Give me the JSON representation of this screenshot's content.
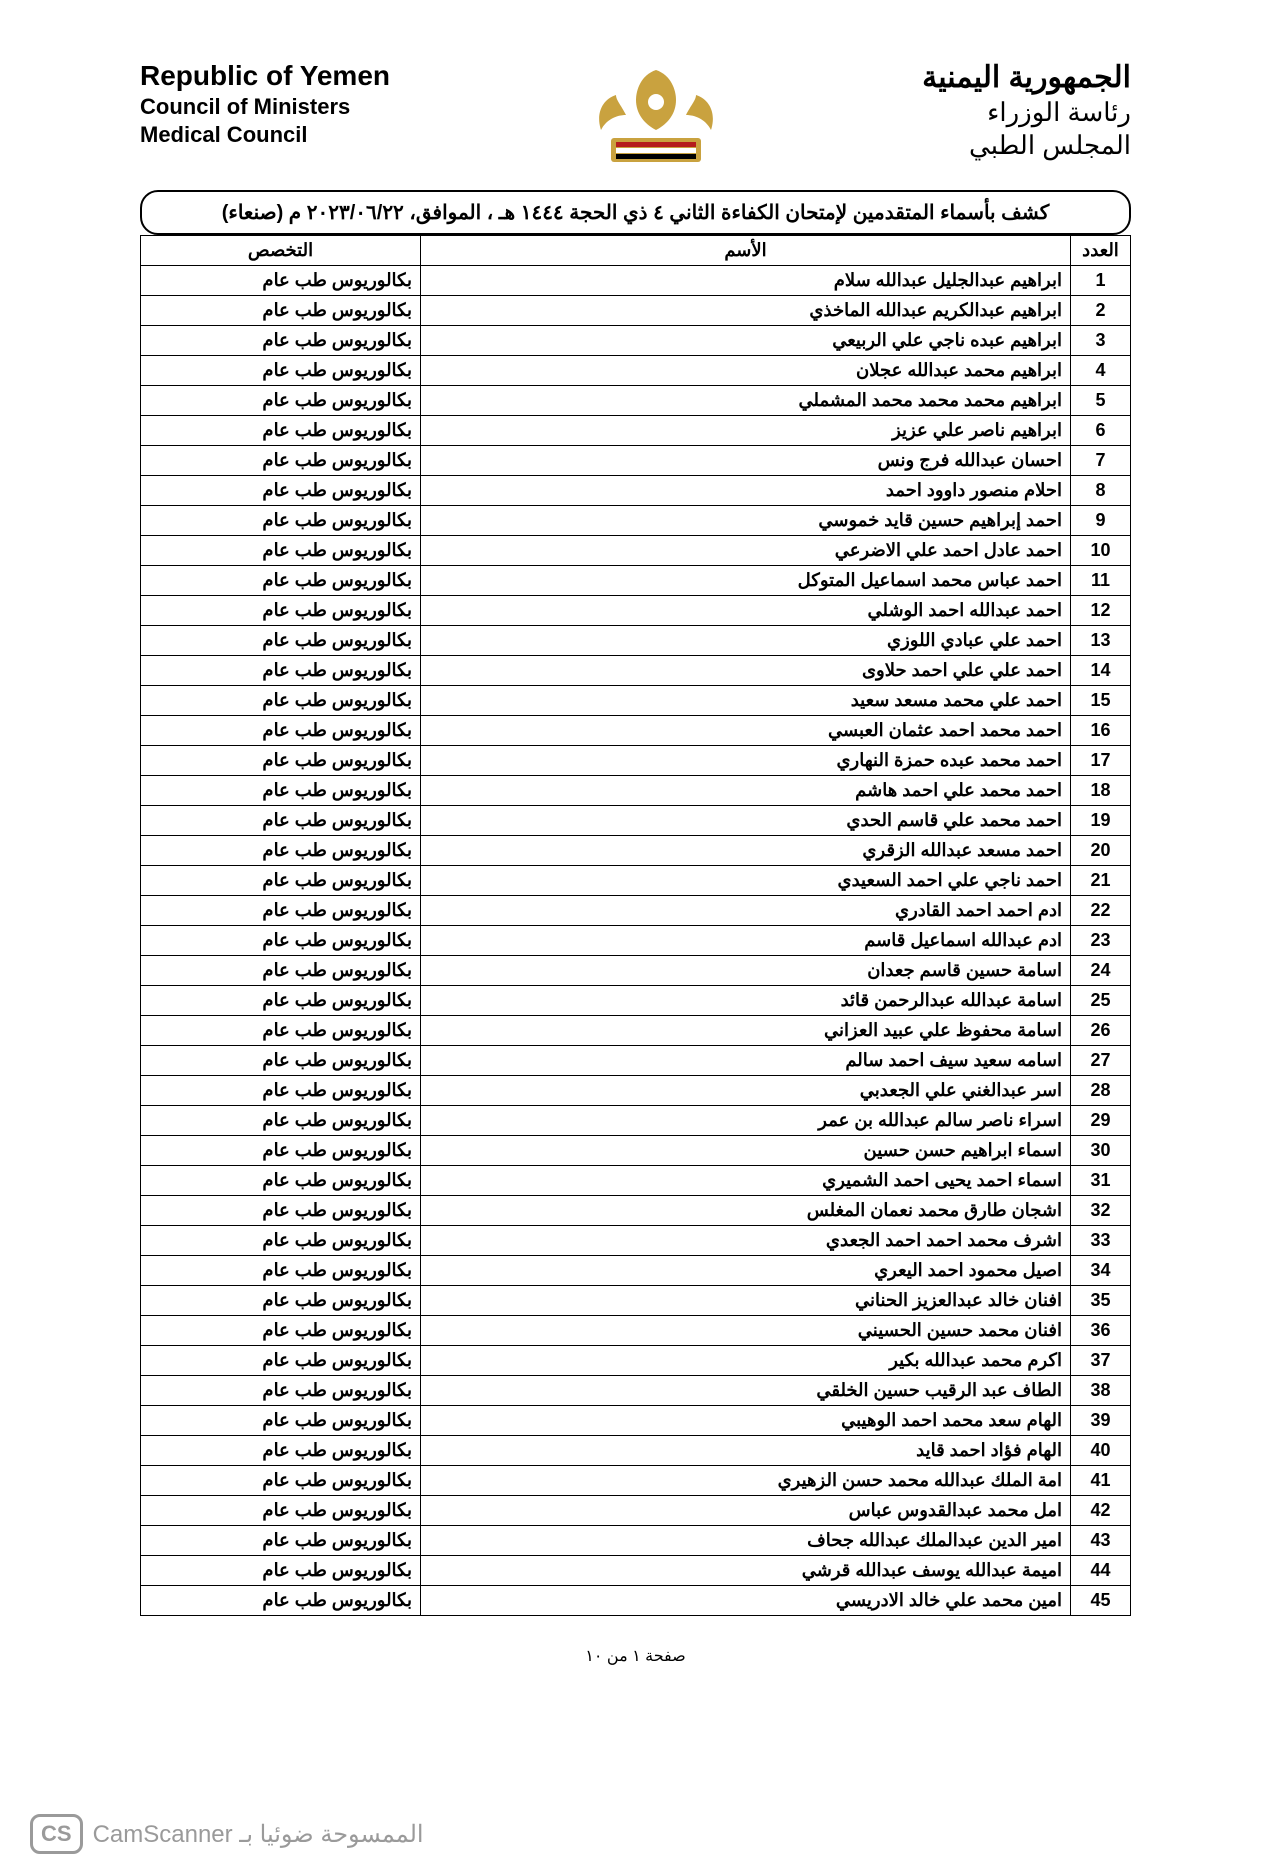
{
  "header": {
    "en": {
      "line1": "Republic of Yemen",
      "line2": "Council of Ministers",
      "line3": "Medical Council"
    },
    "ar": {
      "line1": "الجمهورية اليمنية",
      "line2": "رئاسة الوزراء",
      "line3": "المجلس الطبي"
    },
    "emblem_colors": {
      "gold": "#c9a23f",
      "red": "#b51d1d",
      "white": "#ffffff",
      "black": "#000000"
    }
  },
  "title": "كشف بأسماء المتقدمين لإمتحان الكفاءة الثاني ٤ ذي الحجة ١٤٤٤ هـ ، الموافق، ٢٠٢٣/٠٦/٢٢ م (صنعاء)",
  "columns": {
    "num": "العدد",
    "name": "الأسم",
    "spec": "التخصص"
  },
  "default_spec": "بكالوريوس طب عام",
  "rows": [
    {
      "n": 1,
      "name": "ابراهيم عبدالجليل عبدالله سلام"
    },
    {
      "n": 2,
      "name": "ابراهيم عبدالكريم عبدالله الماخذي"
    },
    {
      "n": 3,
      "name": "ابراهيم عبده ناجي علي الربيعي"
    },
    {
      "n": 4,
      "name": "ابراهيم محمد عبدالله عجلان"
    },
    {
      "n": 5,
      "name": "ابراهيم محمد محمد محمد المشملي"
    },
    {
      "n": 6,
      "name": "ابراهيم ناصر علي عزيز"
    },
    {
      "n": 7,
      "name": "احسان عبدالله فرج ونس"
    },
    {
      "n": 8,
      "name": "احلام منصور داوود احمد"
    },
    {
      "n": 9,
      "name": "احمد إبراهيم حسين قايد خموسي"
    },
    {
      "n": 10,
      "name": "احمد عادل احمد علي الاضرعي"
    },
    {
      "n": 11,
      "name": "احمد عباس محمد اسماعيل المتوكل"
    },
    {
      "n": 12,
      "name": "احمد عبدالله احمد الوشلي"
    },
    {
      "n": 13,
      "name": "احمد علي عبادي اللوزي"
    },
    {
      "n": 14,
      "name": "احمد علي علي احمد حلاوى"
    },
    {
      "n": 15,
      "name": "احمد علي محمد مسعد سعيد"
    },
    {
      "n": 16,
      "name": "احمد محمد احمد عثمان العبسي"
    },
    {
      "n": 17,
      "name": "احمد محمد عبده حمزة النهاري"
    },
    {
      "n": 18,
      "name": "احمد محمد علي احمد هاشم"
    },
    {
      "n": 19,
      "name": "احمد محمد علي قاسم الحدي"
    },
    {
      "n": 20,
      "name": "احمد مسعد عبدالله الزقري"
    },
    {
      "n": 21,
      "name": "احمد ناجي علي احمد السعيدي"
    },
    {
      "n": 22,
      "name": "ادم احمد احمد القادري"
    },
    {
      "n": 23,
      "name": "ادم عبدالله اسماعيل قاسم"
    },
    {
      "n": 24,
      "name": "اسامة حسين قاسم جعدان"
    },
    {
      "n": 25,
      "name": "اسامة عبدالله عبدالرحمن قائد"
    },
    {
      "n": 26,
      "name": "اسامة محفوظ علي عبيد العزاني"
    },
    {
      "n": 27,
      "name": "اسامه سعيد سيف احمد سالم"
    },
    {
      "n": 28,
      "name": "اسر عبدالغني علي الجعدبي"
    },
    {
      "n": 29,
      "name": "اسراء ناصر سالم عبدالله بن عمر"
    },
    {
      "n": 30,
      "name": "اسماء ابراهيم حسن حسين"
    },
    {
      "n": 31,
      "name": "اسماء احمد يحيى احمد الشميري"
    },
    {
      "n": 32,
      "name": "اشجان طارق محمد نعمان المغلس"
    },
    {
      "n": 33,
      "name": "اشرف محمد احمد احمد الجعدي"
    },
    {
      "n": 34,
      "name": "اصيل محمود احمد اليعري"
    },
    {
      "n": 35,
      "name": "افنان خالد عبدالعزيز الحناني"
    },
    {
      "n": 36,
      "name": "افنان محمد حسين الحسيني"
    },
    {
      "n": 37,
      "name": "اكرم محمد عبدالله بكير"
    },
    {
      "n": 38,
      "name": "الطاف عبد الرقيب حسين الخلقي"
    },
    {
      "n": 39,
      "name": "الهام سعد محمد احمد الوهيبي"
    },
    {
      "n": 40,
      "name": "الهام فؤاد احمد قايد"
    },
    {
      "n": 41,
      "name": "امة الملك عبدالله محمد حسن الزهيري"
    },
    {
      "n": 42,
      "name": "امل محمد عبدالقدوس عباس"
    },
    {
      "n": 43,
      "name": "امير الدين عبدالملك عبدالله جحاف"
    },
    {
      "n": 44,
      "name": "اميمة عبدالله يوسف عبدالله قرشي"
    },
    {
      "n": 45,
      "name": "امين محمد علي خالد الادريسي"
    }
  ],
  "footer": "صفحة ١ من ١٠",
  "scan": {
    "badge": "CS",
    "text": "الممسوحة ضوئيا بـ CamScanner"
  }
}
